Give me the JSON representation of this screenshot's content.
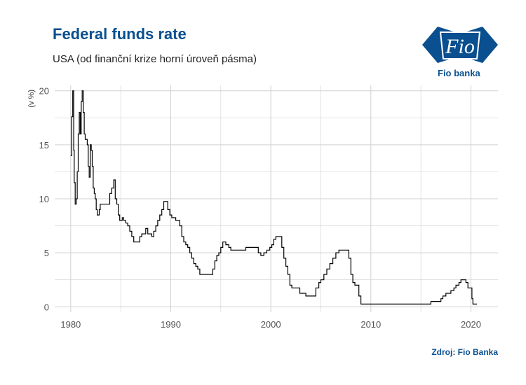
{
  "header": {
    "title": "Federal funds rate",
    "subtitle": "USA (od finanční krize horní úroveň pásma)"
  },
  "logo": {
    "mark": "Fio",
    "name": "Fio banka"
  },
  "footer": {
    "source": "Zdroj: Fio Banka"
  },
  "colors": {
    "title": "#0a4f8f",
    "line": "#000000",
    "grid": "#d0d0d0"
  },
  "chart_data": {
    "type": "line",
    "title": "Federal funds rate",
    "subtitle": "USA (od finanční krize horní úroveň pásma)",
    "ylabel": "(v %)",
    "xlabel": "",
    "xlim": [
      1978.4,
      2022.7
    ],
    "ylim": [
      -0.5,
      20.5
    ],
    "xticks": [
      1980,
      1990,
      2000,
      2010,
      2020
    ],
    "yticks": [
      0,
      5,
      10,
      15,
      20
    ],
    "grid": true,
    "series": [
      {
        "x": [
          1980.0,
          1980.1,
          1980.2,
          1980.3,
          1980.35,
          1980.45,
          1980.55,
          1980.65,
          1980.75,
          1980.85,
          1980.95,
          1981.05,
          1981.15,
          1981.25,
          1981.35,
          1981.45,
          1981.55,
          1981.65,
          1981.75,
          1981.85,
          1981.95,
          1982.05,
          1982.15,
          1982.25,
          1982.35,
          1982.45,
          1982.55,
          1982.65,
          1982.75,
          1982.85,
          1982.95,
          1983.1,
          1983.3,
          1983.5,
          1983.7,
          1983.9,
          1984.1,
          1984.3,
          1984.45,
          1984.6,
          1984.75,
          1984.9,
          1985.0,
          1985.15,
          1985.3,
          1985.5,
          1985.7,
          1985.9,
          1986.1,
          1986.3,
          1986.5,
          1986.7,
          1986.9,
          1987.1,
          1987.3,
          1987.5,
          1987.7,
          1987.9,
          1988.1,
          1988.3,
          1988.5,
          1988.7,
          1988.9,
          1989.1,
          1989.3,
          1989.5,
          1989.7,
          1989.9,
          1990.1,
          1990.3,
          1990.5,
          1990.7,
          1990.9,
          1991.1,
          1991.3,
          1991.5,
          1991.7,
          1991.9,
          1992.1,
          1992.3,
          1992.5,
          1992.7,
          1992.9,
          1993.5,
          1994.0,
          1994.2,
          1994.4,
          1994.6,
          1994.8,
          1995.0,
          1995.2,
          1995.5,
          1995.8,
          1996.0,
          1996.5,
          1997.0,
          1997.5,
          1998.0,
          1998.5,
          1998.75,
          1999.0,
          1999.3,
          1999.6,
          1999.9,
          2000.1,
          2000.3,
          2000.5,
          2000.7,
          2000.9,
          2001.1,
          2001.3,
          2001.5,
          2001.7,
          2001.9,
          2002.1,
          2002.5,
          2002.9,
          2003.2,
          2003.5,
          2004.0,
          2004.5,
          2004.8,
          2005.0,
          2005.3,
          2005.6,
          2005.9,
          2006.2,
          2006.5,
          2006.8,
          2007.0,
          2007.5,
          2007.8,
          2008.0,
          2008.2,
          2008.4,
          2008.6,
          2008.8,
          2009.0,
          2010.0,
          2011.0,
          2012.0,
          2013.0,
          2014.0,
          2015.0,
          2015.9,
          2016.0,
          2016.5,
          2017.0,
          2017.2,
          2017.5,
          2017.8,
          2018.0,
          2018.3,
          2018.5,
          2018.8,
          2019.0,
          2019.3,
          2019.5,
          2019.7,
          2019.9,
          2020.1,
          2020.2,
          2020.3,
          2020.6
        ],
        "values": [
          14.0,
          17.6,
          20.0,
          14.5,
          11.5,
          9.5,
          10.0,
          12.5,
          16.0,
          18.0,
          16.0,
          19.0,
          20.0,
          18.0,
          16.0,
          15.5,
          15.5,
          15.0,
          13.0,
          12.0,
          15.0,
          14.5,
          13.0,
          11.0,
          10.5,
          10.0,
          9.0,
          8.5,
          8.5,
          9.0,
          9.5,
          9.5,
          9.5,
          9.5,
          9.5,
          10.5,
          11.0,
          11.75,
          10.0,
          9.5,
          8.5,
          8.0,
          8.0,
          8.25,
          8.0,
          7.75,
          7.5,
          7.0,
          6.5,
          6.0,
          6.0,
          6.0,
          6.5,
          6.75,
          6.75,
          7.25,
          6.75,
          6.75,
          6.5,
          7.0,
          7.5,
          8.0,
          8.5,
          9.0,
          9.75,
          9.75,
          9.0,
          8.5,
          8.25,
          8.25,
          8.0,
          8.0,
          7.5,
          6.5,
          6.0,
          5.75,
          5.5,
          5.0,
          4.5,
          4.0,
          3.75,
          3.5,
          3.0,
          3.0,
          3.0,
          3.5,
          4.25,
          4.75,
          5.0,
          5.5,
          6.0,
          5.75,
          5.5,
          5.25,
          5.25,
          5.25,
          5.5,
          5.5,
          5.5,
          5.0,
          4.75,
          5.0,
          5.25,
          5.5,
          5.75,
          6.25,
          6.5,
          6.5,
          6.5,
          5.5,
          4.5,
          3.75,
          3.0,
          2.0,
          1.75,
          1.75,
          1.25,
          1.25,
          1.0,
          1.0,
          1.75,
          2.25,
          2.5,
          3.0,
          3.5,
          4.0,
          4.5,
          5.0,
          5.25,
          5.25,
          5.25,
          4.5,
          3.0,
          2.25,
          2.0,
          2.0,
          1.0,
          0.25,
          0.25,
          0.25,
          0.25,
          0.25,
          0.25,
          0.25,
          0.25,
          0.5,
          0.5,
          0.75,
          1.0,
          1.25,
          1.25,
          1.5,
          1.75,
          2.0,
          2.25,
          2.5,
          2.5,
          2.25,
          1.75,
          1.75,
          0.75,
          0.25,
          0.25,
          0.25
        ]
      }
    ]
  }
}
